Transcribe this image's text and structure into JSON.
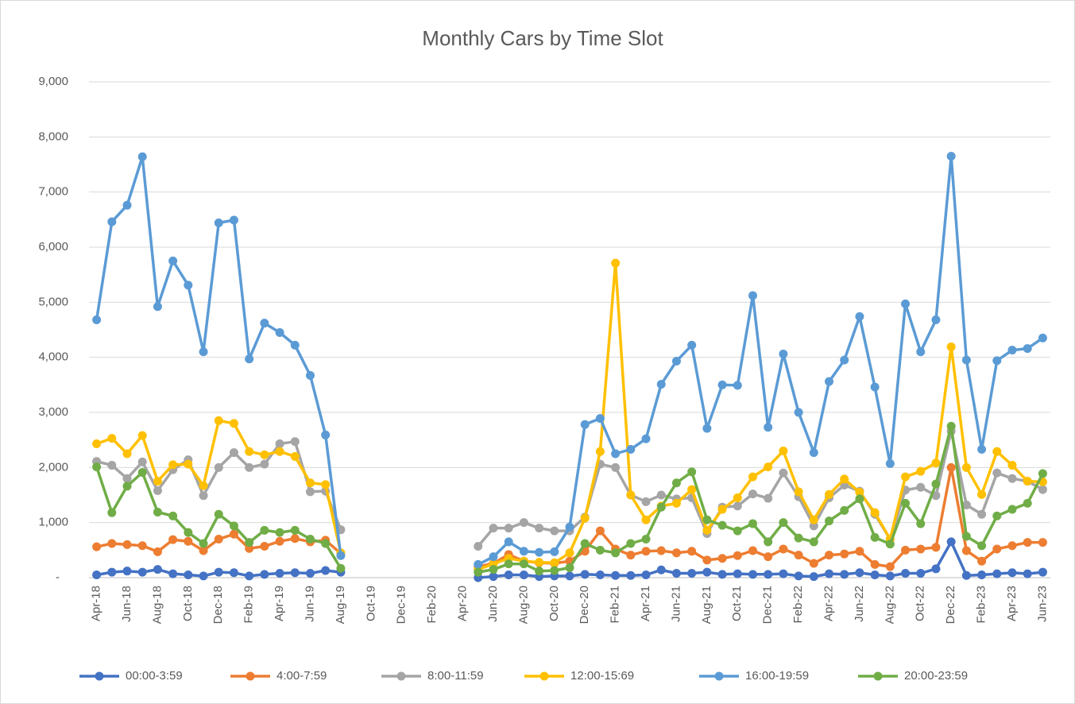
{
  "chart_data": {
    "type": "line",
    "title": "Monthly Cars by Time Slot",
    "categories": [
      "Apr-18",
      null,
      "Jun-18",
      null,
      "Aug-18",
      null,
      "Oct-18",
      null,
      "Dec-18",
      null,
      "Feb-19",
      null,
      "Apr-19",
      null,
      "Jun-19",
      null,
      "Aug-19",
      null,
      "Oct-19",
      null,
      "Dec-19",
      null,
      "Feb-20",
      null,
      "Apr-20",
      null,
      "Jun-20",
      null,
      "Aug-20",
      null,
      "Oct-20",
      null,
      "Dec-20",
      null,
      "Feb-21",
      null,
      "Apr-21",
      null,
      "Jun-21",
      null,
      "Aug-21",
      null,
      "Oct-21",
      null,
      "Dec-21",
      null,
      "Feb-22",
      null,
      "Apr-22",
      null,
      "Jun-22",
      null,
      "Aug-22",
      null,
      "Oct-22",
      null,
      "Dec-22",
      null,
      "Feb-23",
      null,
      "Apr-23",
      null,
      "Jun-23"
    ],
    "ylim": [
      0,
      9000
    ],
    "yticks": [
      {
        "value": 0,
        "label": "-"
      },
      {
        "value": 1000,
        "label": "1,000"
      },
      {
        "value": 2000,
        "label": "2,000"
      },
      {
        "value": 3000,
        "label": "3,000"
      },
      {
        "value": 4000,
        "label": "4,000"
      },
      {
        "value": 5000,
        "label": "5,000"
      },
      {
        "value": 6000,
        "label": "6,000"
      },
      {
        "value": 7000,
        "label": "7,000"
      },
      {
        "value": 8000,
        "label": "8,000"
      },
      {
        "value": 9000,
        "label": "9,000"
      }
    ],
    "grid": true,
    "legend": "bottom",
    "series": [
      {
        "name": "00:00-3:59",
        "color": "#4472c4",
        "values": [
          50,
          100,
          120,
          100,
          150,
          70,
          50,
          30,
          100,
          90,
          30,
          60,
          80,
          90,
          80,
          130,
          100,
          null,
          null,
          null,
          null,
          null,
          null,
          null,
          null,
          0,
          20,
          50,
          50,
          20,
          30,
          30,
          60,
          50,
          40,
          40,
          50,
          140,
          80,
          80,
          100,
          60,
          70,
          60,
          60,
          70,
          30,
          20,
          70,
          60,
          90,
          50,
          30,
          80,
          80,
          160,
          650,
          40,
          50,
          70,
          90,
          70,
          100
        ]
      },
      {
        "name": "4:00-7:59",
        "color": "#ed7d31",
        "values": [
          560,
          620,
          600,
          580,
          470,
          690,
          660,
          490,
          700,
          790,
          530,
          570,
          660,
          710,
          650,
          680,
          440,
          null,
          null,
          null,
          null,
          null,
          null,
          null,
          null,
          200,
          260,
          420,
          300,
          270,
          260,
          300,
          480,
          850,
          520,
          410,
          480,
          490,
          450,
          480,
          320,
          350,
          400,
          490,
          380,
          520,
          410,
          260,
          410,
          430,
          480,
          240,
          200,
          500,
          520,
          550,
          2000,
          490,
          300,
          520,
          580,
          640,
          640
        ]
      },
      {
        "name": "8:00-11:59",
        "color": "#a5a5a5",
        "values": [
          2110,
          2040,
          1800,
          2100,
          1580,
          1960,
          2140,
          1490,
          2000,
          2270,
          2000,
          2060,
          2430,
          2470,
          1560,
          1570,
          870,
          null,
          null,
          null,
          null,
          null,
          null,
          null,
          null,
          570,
          900,
          900,
          1000,
          900,
          850,
          850,
          1100,
          2060,
          2000,
          1500,
          1380,
          1500,
          1430,
          1450,
          800,
          1280,
          1300,
          1520,
          1440,
          1900,
          1470,
          940,
          1450,
          1680,
          1570,
          1150,
          700,
          1590,
          1640,
          1490,
          2660,
          1320,
          1150,
          1900,
          1800,
          1750,
          1600
        ]
      },
      {
        "name": "12:00-15:69",
        "color": "#ffc000",
        "values": [
          2430,
          2530,
          2250,
          2580,
          1750,
          2050,
          2060,
          1670,
          2850,
          2800,
          2290,
          2230,
          2290,
          2200,
          1720,
          1690,
          450,
          null,
          null,
          null,
          null,
          null,
          null,
          null,
          null,
          150,
          250,
          350,
          300,
          280,
          270,
          450,
          1080,
          2290,
          5710,
          1500,
          1050,
          1300,
          1350,
          1600,
          860,
          1240,
          1450,
          1830,
          2010,
          2300,
          1560,
          1050,
          1510,
          1790,
          1550,
          1180,
          700,
          1830,
          1930,
          2080,
          4190,
          2000,
          1510,
          2290,
          2040,
          1750,
          1740
        ]
      },
      {
        "name": "16:00-19:59",
        "color": "#5b9bd5",
        "values": [
          4680,
          6460,
          6760,
          7640,
          4920,
          5750,
          5310,
          4100,
          6440,
          6490,
          3970,
          4620,
          4450,
          4220,
          3670,
          2590,
          400,
          null,
          null,
          null,
          null,
          null,
          null,
          null,
          null,
          240,
          380,
          650,
          480,
          460,
          470,
          920,
          2780,
          2890,
          2250,
          2330,
          2520,
          3510,
          3930,
          4220,
          2710,
          3500,
          3490,
          5120,
          2730,
          4060,
          3000,
          2270,
          3560,
          3950,
          4740,
          3460,
          2070,
          4970,
          4100,
          4680,
          7650,
          3950,
          2330,
          3940,
          4130,
          4160,
          4350
        ]
      },
      {
        "name": "20:00-23:59",
        "color": "#70ad47",
        "values": [
          2010,
          1180,
          1660,
          1910,
          1190,
          1120,
          820,
          620,
          1150,
          940,
          640,
          860,
          820,
          860,
          700,
          620,
          170,
          null,
          null,
          null,
          null,
          null,
          null,
          null,
          null,
          100,
          150,
          250,
          250,
          120,
          130,
          180,
          620,
          500,
          450,
          620,
          700,
          1280,
          1720,
          1920,
          1050,
          950,
          850,
          980,
          650,
          1000,
          720,
          650,
          1030,
          1220,
          1430,
          730,
          610,
          1350,
          980,
          1700,
          2750,
          750,
          580,
          1120,
          1240,
          1350,
          1890
        ]
      }
    ]
  }
}
